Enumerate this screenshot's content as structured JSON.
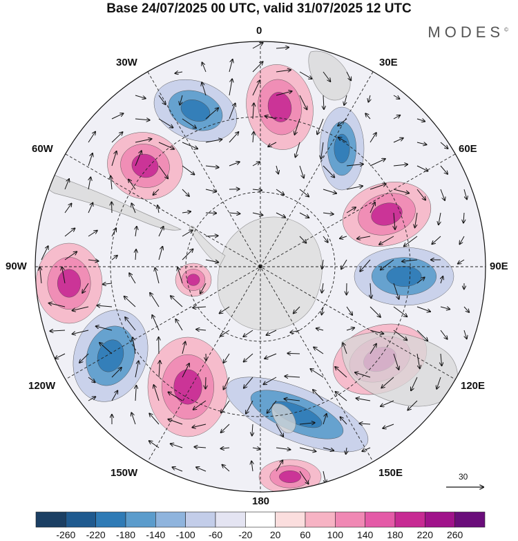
{
  "title": "Base 24/07/2025 00 UTC, valid 31/07/2025 12 UTC",
  "brand": "MODES",
  "brand_mark": "©",
  "longitude_labels": {
    "top": "0",
    "top_right": "30E",
    "right_upper": "60E",
    "right": "90E",
    "right_lower": "120E",
    "bottom_right": "150E",
    "bottom": "180",
    "bottom_left": "150W",
    "left_lower": "120W",
    "left": "90W",
    "left_upper": "60W",
    "top_left": "30W"
  },
  "colorbar": {
    "labels": [
      "-260",
      "-220",
      "-180",
      "-140",
      "-100",
      "-60",
      "-20",
      "20",
      "60",
      "100",
      "140",
      "180",
      "220",
      "260"
    ],
    "colors": [
      "#1b3f63",
      "#1f5a8f",
      "#2f7bb6",
      "#5b9ccc",
      "#8fb4dd",
      "#c3cde9",
      "#e4e4f2",
      "#ffffff",
      "#fbdede",
      "#f7b3c4",
      "#f088b4",
      "#e45aa7",
      "#c72a93",
      "#a0128a",
      "#6a0d7a"
    ]
  },
  "vector_reference": {
    "label": "30"
  },
  "map": {
    "projection": "south-polar-stereographic",
    "anomaly_colors": {
      "neg_strong": "#2f7bb6",
      "neg_mid": "#5b9ccc",
      "neg_weak": "#c3cde9",
      "pos_weak": "#f7b3c4",
      "pos_mid": "#f088b4",
      "pos_strong": "#c72a93",
      "land": "#e0e0e0"
    }
  }
}
